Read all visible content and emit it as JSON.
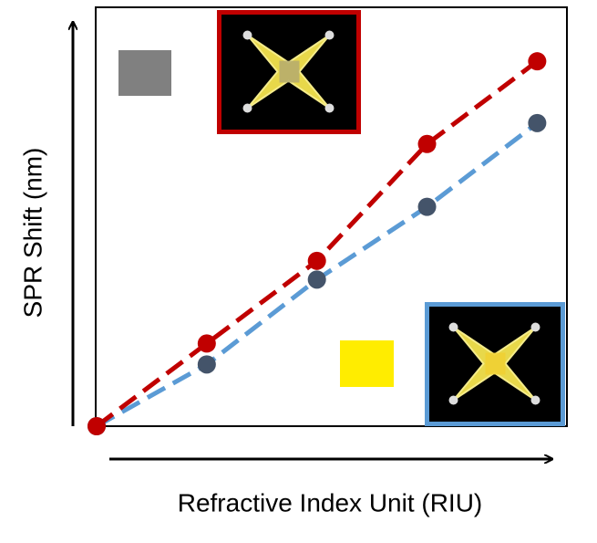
{
  "chart_data": {
    "type": "line",
    "x_label": "Refractive Index Unit (RIU)",
    "y_label": "SPR Shift (nm)",
    "x": [
      0,
      1,
      2,
      3,
      4
    ],
    "xlim": [
      0,
      4.27
    ],
    "ylim": [
      0,
      3.8
    ],
    "series": [
      {
        "color": "#c00000",
        "values": [
          0,
          0.75,
          1.5,
          2.56,
          3.31
        ]
      },
      {
        "color": "#5b9bd5",
        "marker_color": "#44546a",
        "values": [
          0,
          0.56,
          1.33,
          1.99,
          2.75
        ]
      }
    ]
  }
}
